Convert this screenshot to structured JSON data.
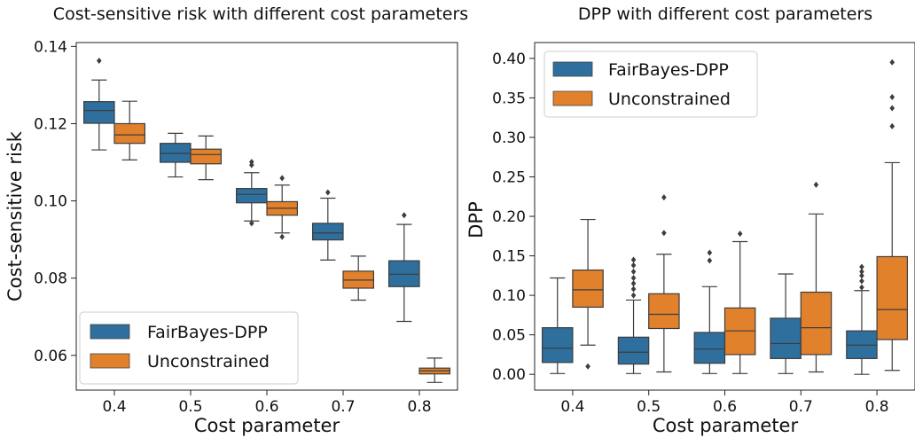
{
  "chart_data": [
    {
      "type": "box",
      "title": "Cost-sensitive risk with different cost parameters",
      "xlabel": "Cost parameter",
      "ylabel": "Cost-sensitive risk",
      "categories": [
        "0.4",
        "0.5",
        "0.6",
        "0.7",
        "0.8"
      ],
      "ylim": [
        0.051,
        0.141
      ],
      "yticks": [
        0.06,
        0.08,
        0.1,
        0.12,
        0.14
      ],
      "ytick_labels": [
        "0.06",
        "0.08",
        "0.10",
        "0.12",
        "0.14"
      ],
      "legend": {
        "position": "lower-left"
      },
      "series": [
        {
          "name": "FairBayes-DPP",
          "color": "#2e6f9e",
          "boxes": [
            {
              "whislo": 0.1132,
              "q1": 0.1201,
              "med": 0.1234,
              "q3": 0.1257,
              "whishi": 0.1313,
              "fliers": [
                0.1363
              ]
            },
            {
              "whislo": 0.1062,
              "q1": 0.11,
              "med": 0.1123,
              "q3": 0.1149,
              "whishi": 0.1175,
              "fliers": []
            },
            {
              "whislo": 0.0948,
              "q1": 0.0995,
              "med": 0.1017,
              "q3": 0.1032,
              "whishi": 0.1073,
              "fliers": [
                0.0942,
                0.1093,
                0.1101
              ]
            },
            {
              "whislo": 0.0847,
              "q1": 0.0899,
              "med": 0.0917,
              "q3": 0.0942,
              "whishi": 0.1007,
              "fliers": [
                0.1022
              ]
            },
            {
              "whislo": 0.0688,
              "q1": 0.0778,
              "med": 0.081,
              "q3": 0.0845,
              "whishi": 0.0939,
              "fliers": [
                0.0963
              ]
            }
          ]
        },
        {
          "name": "Unconstrained",
          "color": "#e1812c",
          "boxes": [
            {
              "whislo": 0.1106,
              "q1": 0.1149,
              "med": 0.1171,
              "q3": 0.12,
              "whishi": 0.1258,
              "fliers": []
            },
            {
              "whislo": 0.1055,
              "q1": 0.1096,
              "med": 0.112,
              "q3": 0.1134,
              "whishi": 0.1168,
              "fliers": []
            },
            {
              "whislo": 0.0917,
              "q1": 0.0963,
              "med": 0.0981,
              "q3": 0.0998,
              "whishi": 0.1041,
              "fliers": [
                0.0907,
                0.1059
              ]
            },
            {
              "whislo": 0.0743,
              "q1": 0.0774,
              "med": 0.0795,
              "q3": 0.0818,
              "whishi": 0.0857,
              "fliers": []
            },
            {
              "whislo": 0.053,
              "q1": 0.0552,
              "med": 0.056,
              "q3": 0.0567,
              "whishi": 0.0593,
              "fliers": []
            }
          ]
        }
      ]
    },
    {
      "type": "box",
      "title": "DPP with different cost parameters",
      "xlabel": "Cost parameter",
      "ylabel": "DPP",
      "categories": [
        "0.4",
        "0.5",
        "0.6",
        "0.7",
        "0.8"
      ],
      "ylim": [
        -0.02,
        0.42
      ],
      "yticks": [
        0.0,
        0.05,
        0.1,
        0.15,
        0.2,
        0.25,
        0.3,
        0.35,
        0.4
      ],
      "ytick_labels": [
        "0.00",
        "0.05",
        "0.10",
        "0.15",
        "0.20",
        "0.25",
        "0.30",
        "0.35",
        "0.40"
      ],
      "legend": {
        "position": "top-left"
      },
      "series": [
        {
          "name": "FairBayes-DPP",
          "color": "#2e6f9e",
          "boxes": [
            {
              "whislo": 0.001,
              "q1": 0.015,
              "med": 0.033,
              "q3": 0.059,
              "whishi": 0.122,
              "fliers": []
            },
            {
              "whislo": 0.001,
              "q1": 0.013,
              "med": 0.028,
              "q3": 0.047,
              "whishi": 0.094,
              "fliers": [
                0.1,
                0.108,
                0.115,
                0.122,
                0.13,
                0.138,
                0.145
              ]
            },
            {
              "whislo": 0.001,
              "q1": 0.014,
              "med": 0.032,
              "q3": 0.053,
              "whishi": 0.111,
              "fliers": [
                0.144,
                0.154
              ]
            },
            {
              "whislo": 0.001,
              "q1": 0.02,
              "med": 0.039,
              "q3": 0.071,
              "whishi": 0.127,
              "fliers": []
            },
            {
              "whislo": 0.0,
              "q1": 0.02,
              "med": 0.037,
              "q3": 0.055,
              "whishi": 0.106,
              "fliers": [
                0.11,
                0.118,
                0.125,
                0.13,
                0.136
              ]
            }
          ]
        },
        {
          "name": "Unconstrained",
          "color": "#e1812c",
          "boxes": [
            {
              "whislo": 0.037,
              "q1": 0.085,
              "med": 0.107,
              "q3": 0.132,
              "whishi": 0.196,
              "fliers": [
                0.01
              ]
            },
            {
              "whislo": 0.003,
              "q1": 0.058,
              "med": 0.076,
              "q3": 0.102,
              "whishi": 0.152,
              "fliers": [
                0.179,
                0.224
              ]
            },
            {
              "whislo": 0.001,
              "q1": 0.025,
              "med": 0.055,
              "q3": 0.084,
              "whishi": 0.168,
              "fliers": [
                0.178
              ]
            },
            {
              "whislo": 0.003,
              "q1": 0.025,
              "med": 0.059,
              "q3": 0.104,
              "whishi": 0.203,
              "fliers": [
                0.24
              ]
            },
            {
              "whislo": 0.005,
              "q1": 0.044,
              "med": 0.082,
              "q3": 0.149,
              "whishi": 0.268,
              "fliers": [
                0.314,
                0.337,
                0.351,
                0.395
              ]
            }
          ]
        }
      ]
    }
  ]
}
